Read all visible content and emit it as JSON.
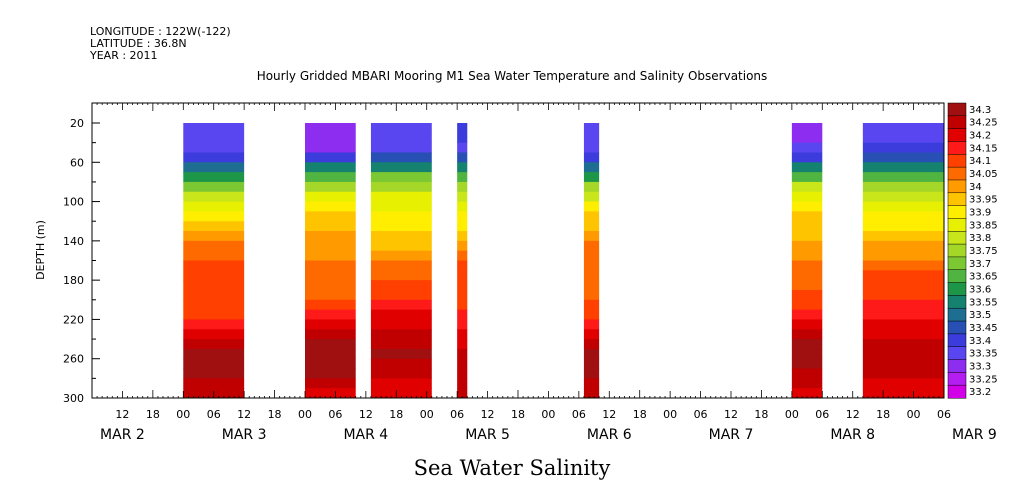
{
  "header": {
    "longitude": "LONGITUDE : 122W(-122)",
    "latitude": "LATITUDE : 36.8N",
    "year": "YEAR : 2011"
  },
  "chart_data": {
    "type": "heatmap",
    "title": "Hourly Gridded MBARI Mooring M1 Sea Water Temperature and Salinity Observations",
    "bottom_title": "Sea Water Salinity",
    "ylabel": "DEPTH (m)",
    "y_axis": {
      "range": [
        20,
        300
      ],
      "inverted": true,
      "ticks": [
        20,
        60,
        100,
        140,
        180,
        220,
        260,
        300
      ]
    },
    "x_axis": {
      "range_hours": [
        0,
        168
      ],
      "hour_tick_labels": [
        "12",
        "18",
        "00",
        "06",
        "12",
        "18",
        "00",
        "06",
        "12",
        "18",
        "00",
        "06",
        "12",
        "18",
        "00",
        "06",
        "12",
        "18",
        "00",
        "06",
        "12",
        "18",
        "00",
        "06",
        "12",
        "18",
        "00",
        "06"
      ],
      "date_labels": [
        "MAR  2",
        "MAR  3",
        "MAR  4",
        "MAR  5",
        "MAR  6",
        "MAR  7",
        "MAR  8",
        "MAR  9"
      ]
    },
    "colorbar": {
      "levels": [
        "34.3",
        "34.25",
        "34.2",
        "34.15",
        "34.1",
        "34.05",
        "34",
        "33.95",
        "33.9",
        "33.85",
        "33.8",
        "33.75",
        "33.7",
        "33.65",
        "33.6",
        "33.55",
        "33.5",
        "33.45",
        "33.4",
        "33.35",
        "33.3",
        "33.25",
        "33.2"
      ],
      "colors": [
        "#a01010",
        "#c00000",
        "#e00000",
        "#ff1a1a",
        "#ff4000",
        "#ff6a00",
        "#ff9a00",
        "#ffc400",
        "#ffee00",
        "#e6f000",
        "#c8e61a",
        "#a5d728",
        "#7cc832",
        "#50b440",
        "#1e9648",
        "#14826e",
        "#1e6e91",
        "#2850b4",
        "#3c3cdc",
        "#5a46f0",
        "#8c2df0",
        "#b41ef0",
        "#d200e6"
      ]
    },
    "data_segments_hours": [
      [
        18,
        30
      ],
      [
        42,
        52
      ],
      [
        55,
        67
      ],
      [
        72,
        74
      ],
      [
        97,
        100
      ],
      [
        138,
        144
      ],
      [
        152,
        170
      ]
    ],
    "salinity_profile": [
      {
        "depth": 20,
        "value": 33.35
      },
      {
        "depth": 50,
        "value": 33.35
      },
      {
        "depth": 70,
        "value": 33.6
      },
      {
        "depth": 90,
        "value": 33.8
      },
      {
        "depth": 110,
        "value": 33.9
      },
      {
        "depth": 130,
        "value": 33.95
      },
      {
        "depth": 160,
        "value": 34.05
      },
      {
        "depth": 200,
        "value": 34.1
      },
      {
        "depth": 230,
        "value": 34.2
      },
      {
        "depth": 260,
        "value": 34.3
      },
      {
        "depth": 300,
        "value": 34.2
      }
    ]
  }
}
